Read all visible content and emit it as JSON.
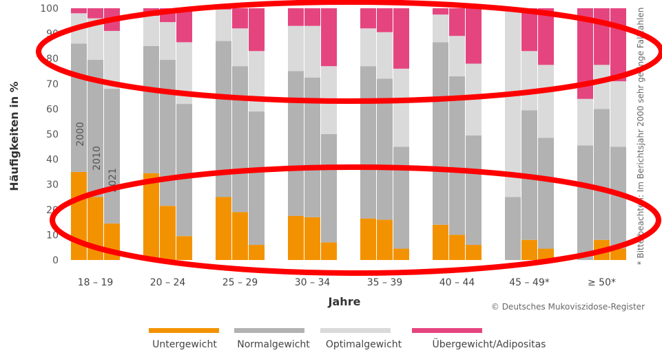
{
  "chart_data": {
    "type": "bar",
    "stacked": true,
    "xlabel": "Jahre",
    "ylabel": "Häufigkeiten in %",
    "ylim": [
      0,
      100
    ],
    "yticks": [
      0,
      10,
      20,
      30,
      40,
      50,
      60,
      70,
      80,
      90,
      100
    ],
    "categories": [
      "18 – 19",
      "20 – 24",
      "25 – 29",
      "30 – 34",
      "35 – 39",
      "40 – 44",
      "45 – 49*",
      "≥ 50*"
    ],
    "bar_years": [
      "2000",
      "2010",
      "2021"
    ],
    "series": [
      {
        "name": "Untergewicht",
        "color": "#F39200",
        "values": [
          [
            35,
            25,
            14.5
          ],
          [
            34.5,
            21.5,
            9.5
          ],
          [
            25,
            19,
            6
          ],
          [
            17.5,
            17,
            7
          ],
          [
            16.5,
            16,
            4.5
          ],
          [
            14,
            10,
            6
          ],
          [
            0,
            8,
            4.5
          ],
          [
            0,
            8,
            4.5
          ]
        ]
      },
      {
        "name": "Normalgewicht",
        "color": "#B2B2B2",
        "values": [
          [
            51,
            54.5,
            53.5
          ],
          [
            50.5,
            58,
            52.5
          ],
          [
            62,
            58,
            53
          ],
          [
            57.5,
            55.5,
            43
          ],
          [
            60.5,
            56,
            40.5
          ],
          [
            72.5,
            63,
            43.5
          ],
          [
            25,
            51.5,
            44
          ],
          [
            45.5,
            52,
            40.5
          ]
        ]
      },
      {
        "name": "Optimalgewicht",
        "color": "#DADADA",
        "values": [
          [
            12,
            16.5,
            23
          ],
          [
            12,
            15,
            24.5
          ],
          [
            12.5,
            15,
            24
          ],
          [
            18,
            20.5,
            27
          ],
          [
            15,
            18.5,
            31
          ],
          [
            11,
            16,
            28.5
          ],
          [
            75,
            23.5,
            29
          ],
          [
            18.5,
            17.5,
            26
          ]
        ]
      },
      {
        "name": "Übergewicht/Adipositas",
        "color": "#E5457F",
        "values": [
          [
            2,
            4,
            9
          ],
          [
            3,
            5.5,
            13.5
          ],
          [
            0.5,
            8,
            17
          ],
          [
            7,
            7,
            23
          ],
          [
            8,
            9.5,
            24
          ],
          [
            2.5,
            11,
            22
          ],
          [
            0,
            17,
            22.5
          ],
          [
            36,
            22.5,
            29
          ]
        ]
      }
    ],
    "annotations": [
      "* Bitte beachten: Im Berichtsjahr 2000 sehr geringe Fallzahlen",
      "© Deutsches Mukoviszidose-Register"
    ],
    "legend_position": "bottom",
    "grid": false
  }
}
